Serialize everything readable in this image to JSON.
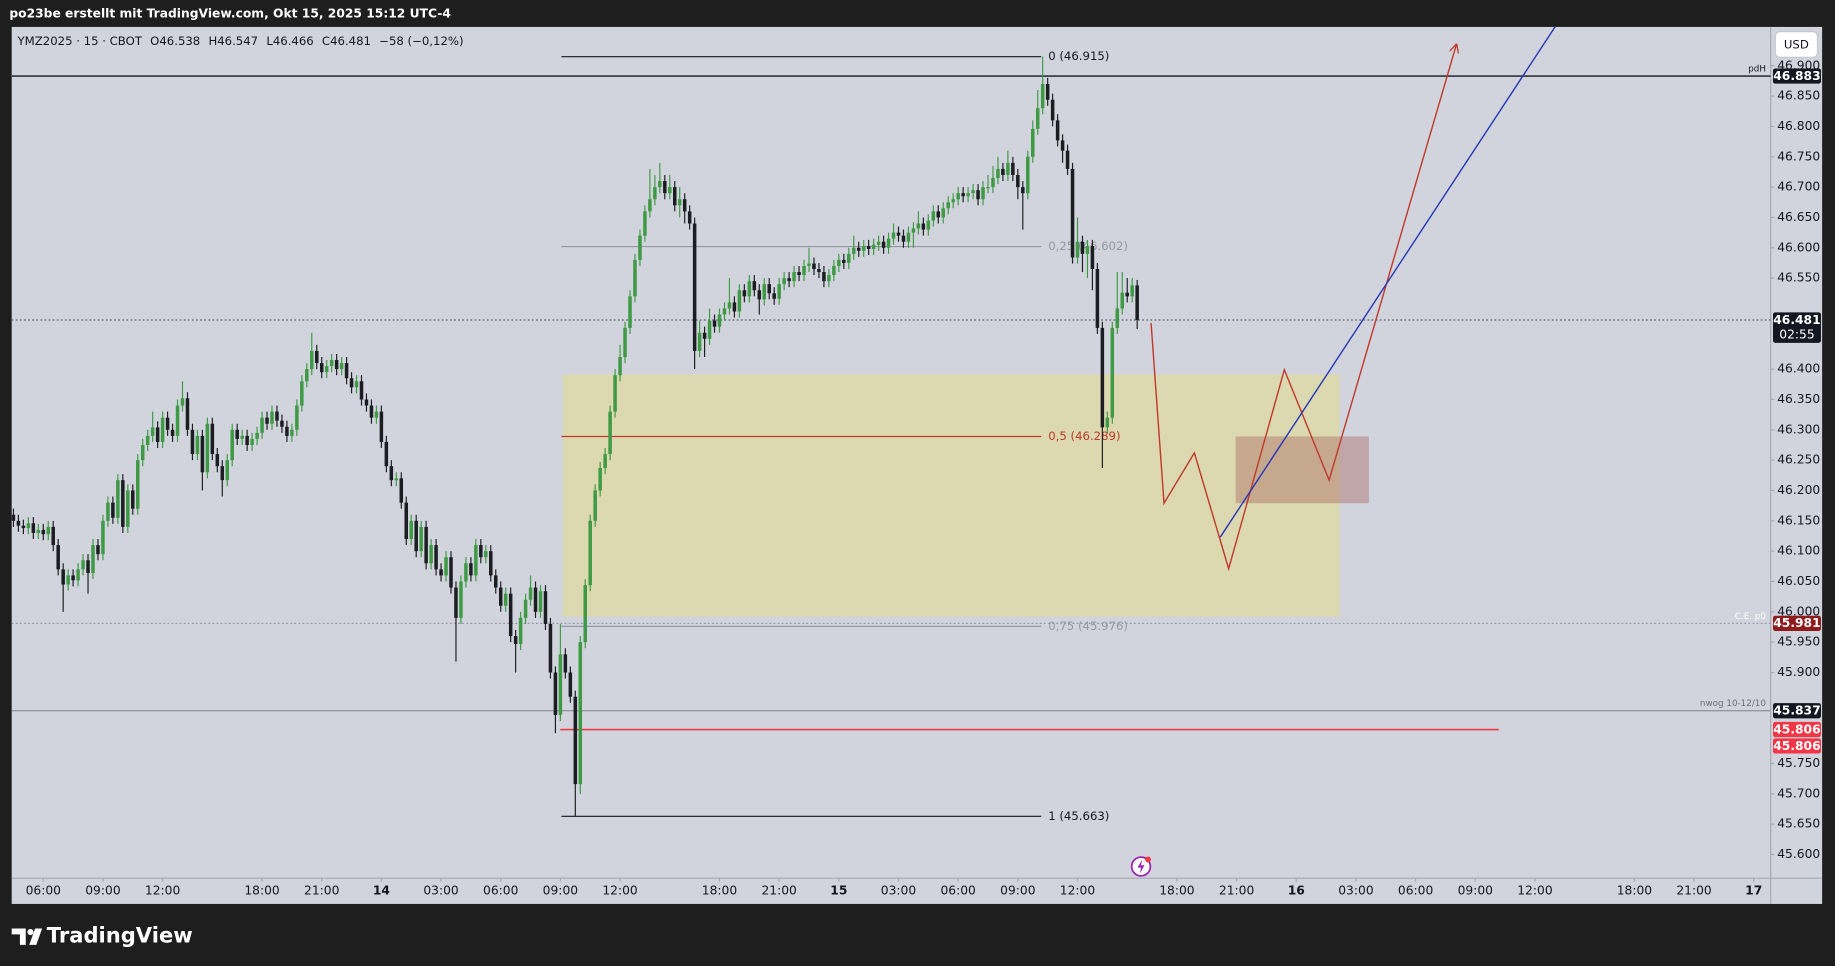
{
  "header": {
    "title": "po23be erstellt mit TradingView.com, Okt 15, 2025 15:12 UTC-4"
  },
  "footer": {
    "brand": "TradingView"
  },
  "chart_data": {
    "type": "candlestick",
    "info": [
      "YMZ2025 · 15 · CBOT",
      "O46.538",
      "H46.547",
      "L46.466",
      "C46.481",
      "−58 (−0,12%)"
    ],
    "currency": "USD",
    "up_color": "#3f9a45",
    "down_color": "#1c1d22",
    "xlim": [
      -0.35,
      353.4
    ],
    "xticks": [
      {
        "value": 6,
        "label": "06:00"
      },
      {
        "value": 18,
        "label": "09:00"
      },
      {
        "value": 30,
        "label": "12:00"
      },
      {
        "value": 50,
        "label": "18:00"
      },
      {
        "value": 62,
        "label": "21:00"
      },
      {
        "value": 74,
        "label": "14"
      },
      {
        "value": 86,
        "label": "03:00"
      },
      {
        "value": 98,
        "label": "06:00"
      },
      {
        "value": 110,
        "label": "09:00"
      },
      {
        "value": 122,
        "label": "12:00"
      },
      {
        "value": 142,
        "label": "18:00"
      },
      {
        "value": 154,
        "label": "21:00"
      },
      {
        "value": 166,
        "label": "15"
      },
      {
        "value": 178,
        "label": "03:00"
      },
      {
        "value": 190,
        "label": "06:00"
      },
      {
        "value": 202,
        "label": "09:00"
      },
      {
        "value": 214,
        "label": "12:00"
      },
      {
        "value": 234,
        "label": "18:00"
      },
      {
        "value": 246,
        "label": "21:00"
      },
      {
        "value": 258,
        "label": "16"
      },
      {
        "value": 270,
        "label": "03:00"
      },
      {
        "value": 282,
        "label": "06:00"
      },
      {
        "value": 294,
        "label": "09:00"
      },
      {
        "value": 306,
        "label": "12:00"
      },
      {
        "value": 326,
        "label": "18:00"
      },
      {
        "value": 338,
        "label": "21:00"
      },
      {
        "value": 350,
        "label": "17"
      }
    ],
    "ylim": [
      45.561,
      46.964
    ],
    "yticks": [
      {
        "value": 45.6,
        "label": "45.600"
      },
      {
        "value": 45.65,
        "label": "45.650"
      },
      {
        "value": 45.7,
        "label": "45.700"
      },
      {
        "value": 45.75,
        "label": "45.750"
      },
      {
        "value": 45.9,
        "label": "45.900"
      },
      {
        "value": 45.95,
        "label": "45.950"
      },
      {
        "value": 46.0,
        "label": "46.000"
      },
      {
        "value": 46.05,
        "label": "46.050"
      },
      {
        "value": 46.1,
        "label": "46.100"
      },
      {
        "value": 46.15,
        "label": "46.150"
      },
      {
        "value": 46.2,
        "label": "46.200"
      },
      {
        "value": 46.25,
        "label": "46.250"
      },
      {
        "value": 46.3,
        "label": "46.300"
      },
      {
        "value": 46.35,
        "label": "46.350"
      },
      {
        "value": 46.4,
        "label": "46.400"
      },
      {
        "value": 46.55,
        "label": "46.550"
      },
      {
        "value": 46.6,
        "label": "46.600"
      },
      {
        "value": 46.65,
        "label": "46.650"
      },
      {
        "value": 46.7,
        "label": "46.700"
      },
      {
        "value": 46.75,
        "label": "46.750"
      },
      {
        "value": 46.8,
        "label": "46.800"
      },
      {
        "value": 46.85,
        "label": "46.850"
      },
      {
        "value": 46.9,
        "label": "46.900"
      }
    ],
    "open": [
      46.16,
      46.15,
      46.142,
      46.138,
      46.146,
      46.13,
      46.135,
      46.128,
      46.14,
      46.11,
      46.07,
      46.045,
      46.06,
      46.052,
      46.07,
      46.085,
      46.064,
      46.11,
      46.095,
      46.15,
      46.18,
      46.155,
      46.217,
      46.14,
      46.2,
      46.17,
      46.25,
      46.275,
      46.29,
      46.304,
      46.28,
      46.32,
      46.3,
      46.29,
      46.34,
      46.352,
      46.3,
      46.26,
      46.29,
      46.23,
      46.31,
      46.26,
      46.24,
      46.217,
      46.25,
      46.3,
      46.285,
      46.29,
      46.275,
      46.285,
      46.295,
      46.32,
      46.31,
      46.33,
      46.315,
      46.305,
      46.29,
      46.3,
      46.34,
      46.38,
      46.4,
      46.43,
      46.41,
      46.395,
      46.405,
      46.415,
      46.4,
      46.41,
      46.385,
      46.37,
      46.38,
      46.35,
      46.34,
      46.32,
      46.33,
      46.28,
      46.24,
      46.217,
      46.22,
      46.18,
      46.12,
      46.15,
      46.1,
      46.14,
      46.08,
      46.11,
      46.07,
      46.06,
      46.09,
      46.04,
      45.99,
      46.05,
      46.08,
      46.06,
      46.11,
      46.09,
      46.1,
      46.06,
      46.04,
      46.01,
      46.03,
      45.96,
      45.947,
      45.99,
      46.02,
      46.04,
      46.0,
      46.034,
      45.98,
      45.9,
      45.83,
      45.93,
      45.9,
      45.86,
      45.716,
      45.95,
      46.044,
      46.15,
      46.2,
      46.237,
      46.26,
      46.33,
      46.39,
      46.42,
      46.468,
      46.52,
      46.58,
      46.62,
      46.66,
      46.68,
      46.7,
      46.71,
      46.69,
      46.7,
      46.67,
      46.68,
      46.66,
      46.64,
      46.43,
      46.46,
      46.45,
      46.48,
      46.47,
      46.49,
      46.5,
      46.51,
      46.495,
      46.53,
      46.52,
      46.545,
      46.53,
      46.515,
      46.54,
      46.525,
      46.516,
      46.54,
      46.55,
      46.545,
      46.56,
      46.555,
      46.57,
      46.574,
      46.565,
      46.56,
      46.545,
      46.555,
      46.57,
      46.58,
      46.575,
      46.59,
      46.6,
      46.595,
      46.603,
      46.598,
      46.605,
      46.61,
      46.6,
      46.615,
      46.625,
      46.62,
      46.61,
      46.625,
      46.632,
      46.64,
      46.63,
      46.645,
      46.66,
      46.65,
      46.665,
      46.675,
      46.68,
      46.69,
      46.685,
      46.69,
      46.695,
      46.68,
      46.7,
      46.7,
      46.715,
      46.73,
      46.72,
      46.74,
      46.72,
      46.7,
      46.69,
      46.75,
      46.796,
      46.83,
      46.87,
      46.844,
      46.81,
      46.777,
      46.76,
      46.73,
      46.584,
      46.61,
      46.59,
      46.603,
      46.565,
      46.468,
      46.304,
      46.32,
      46.468,
      46.5,
      46.526,
      46.52,
      46.538
    ],
    "high": [
      46.17,
      46.16,
      46.152,
      46.156,
      46.156,
      46.145,
      46.145,
      46.15,
      46.15,
      46.12,
      46.08,
      46.07,
      46.07,
      46.08,
      46.095,
      46.095,
      46.12,
      46.12,
      46.16,
      46.19,
      46.19,
      46.227,
      46.227,
      46.21,
      46.21,
      46.26,
      46.285,
      46.3,
      46.33,
      46.314,
      46.33,
      46.33,
      46.31,
      46.35,
      46.38,
      46.362,
      46.31,
      46.3,
      46.3,
      46.32,
      46.32,
      46.27,
      46.25,
      46.26,
      46.31,
      46.31,
      46.3,
      46.3,
      46.295,
      46.305,
      46.33,
      46.33,
      46.34,
      46.34,
      46.325,
      46.315,
      46.31,
      46.35,
      46.39,
      46.41,
      46.46,
      46.44,
      46.42,
      46.415,
      46.425,
      46.425,
      46.42,
      46.42,
      46.395,
      46.39,
      46.39,
      46.36,
      46.35,
      46.34,
      46.34,
      46.29,
      46.25,
      46.23,
      46.23,
      46.19,
      46.16,
      46.16,
      46.15,
      46.15,
      46.12,
      46.12,
      46.08,
      46.1,
      46.1,
      46.05,
      46.06,
      46.09,
      46.09,
      46.12,
      46.12,
      46.11,
      46.11,
      46.07,
      46.05,
      46.04,
      46.04,
      45.97,
      46.0,
      46.03,
      46.06,
      46.05,
      46.044,
      46.044,
      45.99,
      45.91,
      45.98,
      45.94,
      45.91,
      45.87,
      45.96,
      46.054,
      46.16,
      46.21,
      46.247,
      46.27,
      46.34,
      46.4,
      46.44,
      46.478,
      46.53,
      46.59,
      46.63,
      46.67,
      46.73,
      46.72,
      46.74,
      46.72,
      46.72,
      46.71,
      46.7,
      46.69,
      46.67,
      46.65,
      46.48,
      46.47,
      46.5,
      46.49,
      46.5,
      46.51,
      46.55,
      46.52,
      46.54,
      46.54,
      46.555,
      46.555,
      46.54,
      46.55,
      46.55,
      46.535,
      46.55,
      46.56,
      46.56,
      46.57,
      46.57,
      46.58,
      46.6,
      46.584,
      46.575,
      46.57,
      46.565,
      46.58,
      46.59,
      46.59,
      46.6,
      46.62,
      46.61,
      46.613,
      46.613,
      46.615,
      46.62,
      46.62,
      46.625,
      46.64,
      46.635,
      46.63,
      46.635,
      46.642,
      46.66,
      46.65,
      46.655,
      46.67,
      46.67,
      46.675,
      46.685,
      46.69,
      46.7,
      46.7,
      46.7,
      46.705,
      46.705,
      46.71,
      46.72,
      46.735,
      46.75,
      46.74,
      46.76,
      46.75,
      46.73,
      46.71,
      46.76,
      46.81,
      46.86,
      46.915,
      46.88,
      46.854,
      46.82,
      46.787,
      46.77,
      46.74,
      46.65,
      46.62,
      46.613,
      46.613,
      46.575,
      46.478,
      46.33,
      46.478,
      46.56,
      46.56,
      46.55,
      46.55,
      46.547
    ],
    "low": [
      46.14,
      46.132,
      46.128,
      46.128,
      46.12,
      46.12,
      46.118,
      46.118,
      46.1,
      46.06,
      46.0,
      46.035,
      46.042,
      46.042,
      46.06,
      46.03,
      46.054,
      46.085,
      46.085,
      46.14,
      46.145,
      46.145,
      46.13,
      46.13,
      46.16,
      46.16,
      46.24,
      46.265,
      46.28,
      46.27,
      46.27,
      46.29,
      46.28,
      46.28,
      46.33,
      46.29,
      46.25,
      46.25,
      46.2,
      46.22,
      46.25,
      46.23,
      46.19,
      46.207,
      46.24,
      46.275,
      46.275,
      46.265,
      46.265,
      46.275,
      46.285,
      46.3,
      46.3,
      46.305,
      46.295,
      46.28,
      46.28,
      46.29,
      46.33,
      46.37,
      46.39,
      46.4,
      46.385,
      46.385,
      46.395,
      46.39,
      46.39,
      46.375,
      46.36,
      46.36,
      46.34,
      46.33,
      46.31,
      46.31,
      46.27,
      46.23,
      46.207,
      46.207,
      46.17,
      46.11,
      46.11,
      46.09,
      46.09,
      46.07,
      46.07,
      46.06,
      46.05,
      46.05,
      46.03,
      45.918,
      45.98,
      46.04,
      46.05,
      46.05,
      46.08,
      46.08,
      46.05,
      46.03,
      46.0,
      46.0,
      45.95,
      45.9,
      45.937,
      45.98,
      46.01,
      45.99,
      45.99,
      45.97,
      45.89,
      45.8,
      45.82,
      45.89,
      45.85,
      45.663,
      45.7,
      45.94,
      46.034,
      46.14,
      46.19,
      46.227,
      46.25,
      46.32,
      46.38,
      46.41,
      46.458,
      46.51,
      46.57,
      46.61,
      46.65,
      46.67,
      46.69,
      46.68,
      46.68,
      46.66,
      46.65,
      46.64,
      46.63,
      46.4,
      46.42,
      46.42,
      46.44,
      46.46,
      46.46,
      46.48,
      46.49,
      46.485,
      46.485,
      46.51,
      46.51,
      46.52,
      46.49,
      46.505,
      46.515,
      46.506,
      46.506,
      46.53,
      46.535,
      46.535,
      46.545,
      46.545,
      46.56,
      46.555,
      46.55,
      46.535,
      46.535,
      46.545,
      46.56,
      46.565,
      46.565,
      46.58,
      46.585,
      46.585,
      46.588,
      46.588,
      46.595,
      46.59,
      46.59,
      46.605,
      46.61,
      46.6,
      46.6,
      46.6,
      46.622,
      46.62,
      46.62,
      46.635,
      46.64,
      46.64,
      46.655,
      46.665,
      46.67,
      46.675,
      46.675,
      46.68,
      46.67,
      46.67,
      46.69,
      46.69,
      46.705,
      46.71,
      46.71,
      46.71,
      46.68,
      46.63,
      46.68,
      46.74,
      46.786,
      46.82,
      46.834,
      46.8,
      46.767,
      46.74,
      46.72,
      46.574,
      46.574,
      46.56,
      46.55,
      46.53,
      46.458,
      46.237,
      46.294,
      46.31,
      46.458,
      46.49,
      46.51,
      46.51,
      46.466
    ],
    "close": [
      46.15,
      46.142,
      46.138,
      46.146,
      46.13,
      46.135,
      46.128,
      46.14,
      46.11,
      46.07,
      46.045,
      46.06,
      46.052,
      46.07,
      46.085,
      46.064,
      46.11,
      46.095,
      46.15,
      46.18,
      46.155,
      46.217,
      46.14,
      46.2,
      46.17,
      46.25,
      46.275,
      46.29,
      46.304,
      46.28,
      46.32,
      46.3,
      46.29,
      46.34,
      46.352,
      46.3,
      46.26,
      46.29,
      46.23,
      46.31,
      46.26,
      46.24,
      46.217,
      46.25,
      46.3,
      46.285,
      46.29,
      46.275,
      46.285,
      46.295,
      46.32,
      46.31,
      46.33,
      46.315,
      46.305,
      46.29,
      46.3,
      46.34,
      46.38,
      46.4,
      46.43,
      46.41,
      46.395,
      46.405,
      46.415,
      46.4,
      46.41,
      46.385,
      46.37,
      46.38,
      46.35,
      46.34,
      46.32,
      46.33,
      46.28,
      46.24,
      46.217,
      46.22,
      46.18,
      46.12,
      46.15,
      46.1,
      46.14,
      46.08,
      46.11,
      46.07,
      46.06,
      46.09,
      46.04,
      45.99,
      46.05,
      46.08,
      46.06,
      46.11,
      46.09,
      46.1,
      46.06,
      46.04,
      46.01,
      46.03,
      45.96,
      45.947,
      45.99,
      46.02,
      46.04,
      46.0,
      46.034,
      45.98,
      45.9,
      45.83,
      45.93,
      45.9,
      45.86,
      45.716,
      45.95,
      46.044,
      46.15,
      46.2,
      46.237,
      46.26,
      46.33,
      46.39,
      46.42,
      46.468,
      46.52,
      46.58,
      46.62,
      46.66,
      46.68,
      46.7,
      46.71,
      46.69,
      46.7,
      46.67,
      46.68,
      46.66,
      46.64,
      46.43,
      46.46,
      46.45,
      46.48,
      46.47,
      46.49,
      46.5,
      46.51,
      46.495,
      46.53,
      46.52,
      46.545,
      46.53,
      46.515,
      46.54,
      46.525,
      46.516,
      46.54,
      46.55,
      46.545,
      46.56,
      46.555,
      46.57,
      46.574,
      46.565,
      46.56,
      46.545,
      46.555,
      46.57,
      46.58,
      46.575,
      46.59,
      46.6,
      46.595,
      46.603,
      46.598,
      46.605,
      46.61,
      46.6,
      46.615,
      46.625,
      46.62,
      46.61,
      46.625,
      46.632,
      46.64,
      46.63,
      46.645,
      46.66,
      46.65,
      46.665,
      46.675,
      46.68,
      46.69,
      46.685,
      46.69,
      46.695,
      46.68,
      46.7,
      46.7,
      46.715,
      46.73,
      46.72,
      46.74,
      46.72,
      46.7,
      46.69,
      46.75,
      46.796,
      46.83,
      46.87,
      46.844,
      46.81,
      46.777,
      46.76,
      46.73,
      46.584,
      46.61,
      46.59,
      46.603,
      46.565,
      46.468,
      46.304,
      46.32,
      46.468,
      46.5,
      46.526,
      46.52,
      46.538,
      46.481
    ],
    "levels": [
      {
        "name": "pdH",
        "value": 46.883,
        "color": "#131722",
        "style": "solid",
        "badge": "#131722",
        "label_color": "#131722"
      },
      {
        "value": 46.481,
        "color": "#5d606b",
        "style": "dotted",
        "badge": "#131722",
        "countdown": "02:55"
      },
      {
        "name": "C.E. p0",
        "value": 45.981,
        "color": "#9598a1",
        "style": "dotted",
        "badge": "#8e1c1c",
        "label_color": "#ffffff"
      },
      {
        "name": "nwog 10-12/10",
        "value": 45.837,
        "color": "#9598a1",
        "style": "solid",
        "badge": "#131722",
        "label_color": "#6a6d78"
      },
      {
        "value": 45.806,
        "color": "#f23645",
        "style": "solid",
        "badge": "#f23645",
        "x": [
          110,
          298.7
        ]
      },
      {
        "value": 45.806,
        "color": "#f23645",
        "style": "solid",
        "badge": "#f23645",
        "x": [
          110,
          298.7
        ]
      }
    ],
    "fib": {
      "x": [
        110.2,
        206.7
      ],
      "levels": [
        {
          "text": "0 (46.915)",
          "value": 46.915,
          "color": "#131722"
        },
        {
          "text": "0,25 (46.602)",
          "value": 46.602,
          "color": "#9598a1"
        },
        {
          "text": "0,5 (46.289)",
          "value": 46.289,
          "color": "#c0392b"
        },
        {
          "text": "0,75 (45.976)",
          "value": 45.976,
          "color": "#9598a1"
        },
        {
          "text": "1 (45.663)",
          "value": 45.663,
          "color": "#131722"
        }
      ]
    },
    "zones": [
      {
        "x": [
          110.5,
          266.7
        ],
        "y": [
          45.992,
          46.391
        ],
        "color": "#dcd8b0"
      },
      {
        "x": [
          245.8,
          272.6
        ],
        "y": [
          46.179,
          46.289
        ],
        "color": "rgba(170,110,105,0.45)"
      }
    ],
    "paths": [
      {
        "color": "#c0392b",
        "arrow": true,
        "x": [
          228.8,
          231.4,
          237.5,
          244.4,
          255.6,
          264.6,
          290.2
        ],
        "y": [
          46.476,
          46.179,
          46.262,
          46.071,
          46.399,
          46.217,
          46.935
        ]
      },
      {
        "color": "#2638b5",
        "arrow": false,
        "x": [
          242.7,
          310.2
        ],
        "y": [
          46.123,
          46.966
        ]
      }
    ]
  }
}
